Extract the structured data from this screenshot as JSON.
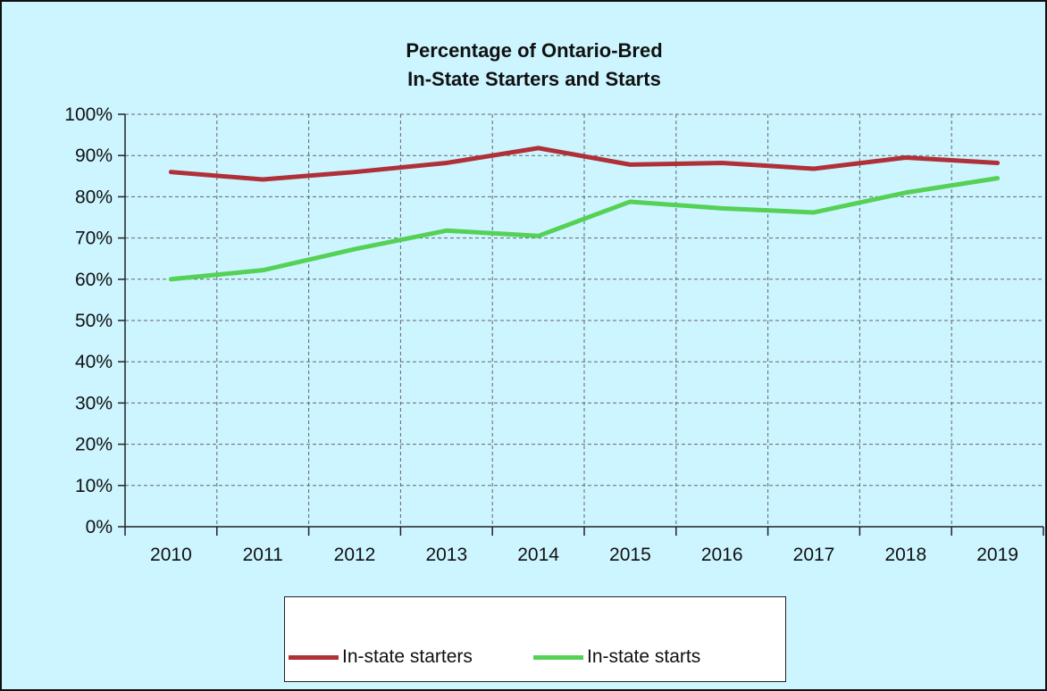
{
  "chart_data": {
    "type": "line",
    "title": [
      "Percentage of Ontario-Bred",
      "In-State Starters and Starts"
    ],
    "categories": [
      "2010",
      "2011",
      "2012",
      "2013",
      "2014",
      "2015",
      "2016",
      "2017",
      "2018",
      "2019"
    ],
    "y_ticks": [
      "0%",
      "10%",
      "20%",
      "30%",
      "40%",
      "50%",
      "60%",
      "70%",
      "80%",
      "90%",
      "100%"
    ],
    "ylim": [
      0,
      100
    ],
    "grid": true,
    "legend_position": "bottom",
    "series": [
      {
        "name": "In-state starters",
        "color": "#b03038",
        "values": [
          86,
          84.2,
          86,
          88.2,
          91.8,
          87.8,
          88.2,
          86.8,
          89.5,
          88.2
        ]
      },
      {
        "name": "In-state starts",
        "color": "#55d155",
        "values": [
          60,
          62.2,
          67.3,
          71.8,
          70.5,
          78.8,
          77.2,
          76.2,
          81,
          84.5
        ]
      }
    ]
  },
  "colors": {
    "background": "#ccf5ff",
    "plot_area": "#ccf5ff",
    "grid": "#666666"
  }
}
